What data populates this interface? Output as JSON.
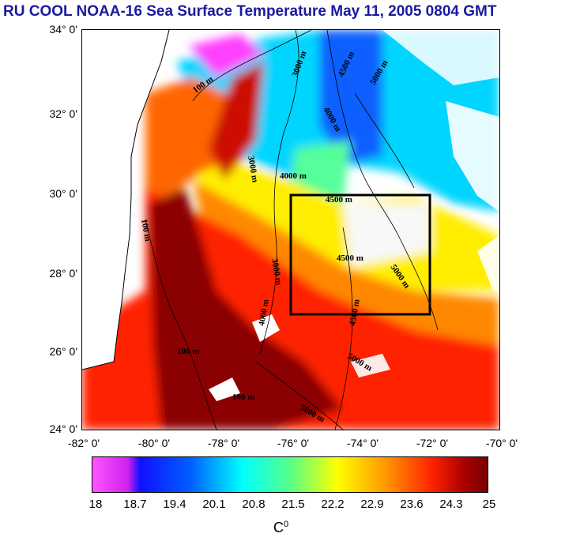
{
  "title": "RU COOL  NOAA-16 Sea Surface Temperature May 11, 2005 0804 GMT",
  "map": {
    "lat_labels": [
      "34° 0'",
      "32° 0'",
      "30° 0'",
      "28° 0'",
      "26° 0'",
      "24° 0'"
    ],
    "lon_labels": [
      "-82° 0'",
      "-80° 0'",
      "-78° 0'",
      "-76° 0'",
      "-74° 0'",
      "-72° 0'",
      "-70° 0'"
    ],
    "lat_range": [
      24,
      34
    ],
    "lon_range": [
      -82,
      -70
    ],
    "study_box": {
      "lon": [
        -76,
        -72
      ],
      "lat": [
        27,
        30
      ]
    },
    "contour_labels": [
      "100 m",
      "3000 m",
      "4500 m",
      "5000 m",
      "4000 m",
      "4000 m",
      "4500 m",
      "3000 m",
      "4500 m",
      "5000 m",
      "4500 m",
      "5000 m",
      "100 m",
      "4000 m",
      "3000 m",
      "100 m",
      "100 m",
      "5000 m"
    ]
  },
  "colorbar": {
    "ticks": [
      "18",
      "18.7",
      "19.4",
      "20.1",
      "20.8",
      "21.5",
      "22.2",
      "22.9",
      "23.6",
      "24.3",
      "25"
    ],
    "unit_base": "C",
    "unit_sup": "0"
  },
  "colors": {
    "title": "#1a1aa0",
    "warm": "#8b0000",
    "hot": "#ff2200",
    "mid": "#ffff00",
    "cool": "#00e5ff",
    "cold": "#1010ff",
    "land": "#ffffff"
  }
}
